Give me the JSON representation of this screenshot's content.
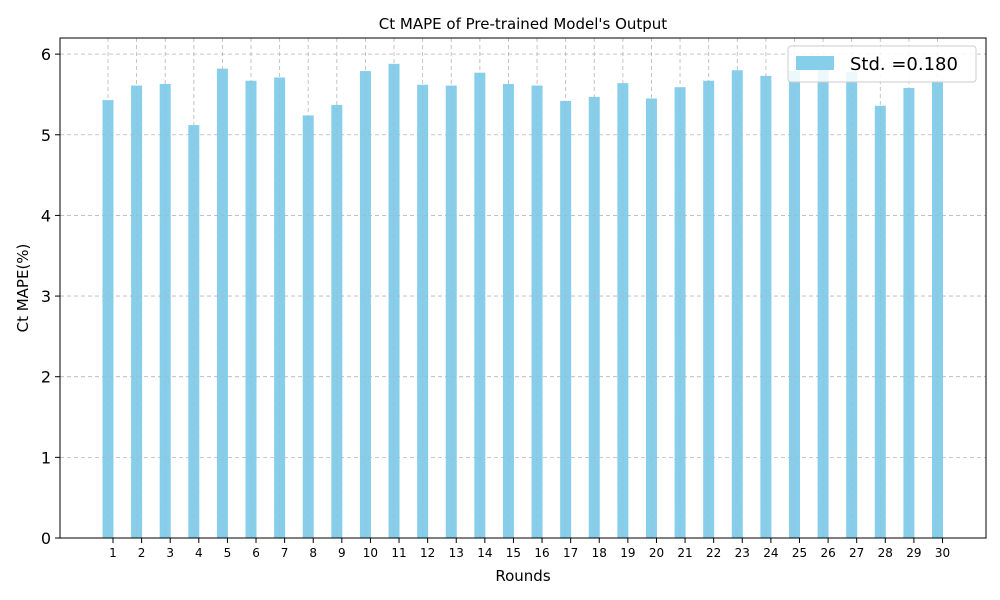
{
  "chart_data": {
    "type": "bar",
    "title": "Ct MAPE of Pre-trained Model's Output",
    "xlabel": "Rounds",
    "ylabel": "Ct MAPE(%)",
    "categories": [
      "1",
      "2",
      "3",
      "4",
      "5",
      "6",
      "7",
      "8",
      "9",
      "10",
      "11",
      "12",
      "13",
      "14",
      "15",
      "16",
      "17",
      "18",
      "19",
      "20",
      "21",
      "22",
      "23",
      "24",
      "25",
      "26",
      "27",
      "28",
      "29",
      "30"
    ],
    "series": [
      {
        "name": "Std. =0.180",
        "values": [
          5.43,
          5.61,
          5.63,
          5.12,
          5.82,
          5.67,
          5.71,
          5.24,
          5.37,
          5.79,
          5.88,
          5.62,
          5.61,
          5.77,
          5.63,
          5.61,
          5.42,
          5.47,
          5.64,
          5.45,
          5.59,
          5.67,
          5.8,
          5.73,
          5.79,
          5.84,
          5.78,
          5.36,
          5.58,
          5.66
        ]
      }
    ],
    "ylim": [
      0,
      6.2
    ],
    "yticks": [
      "0",
      "1",
      "2",
      "3",
      "4",
      "5",
      "6"
    ],
    "grid": true,
    "legend_position": "top-right",
    "bar_color": "#87ceeb"
  }
}
